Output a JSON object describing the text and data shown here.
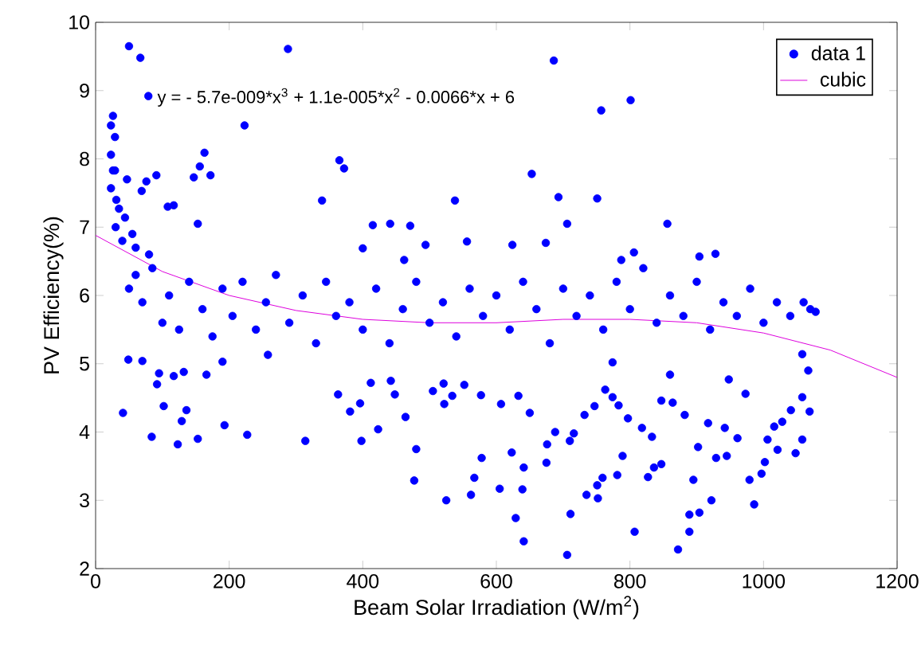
{
  "chart_data": {
    "type": "scatter",
    "xlabel": "Beam Solar Irradiation (W/m$^{2}$)",
    "ylabel": "PV Efficiency(%)",
    "annotations": [
      "y = - 5.7e-009*x$^{3}$ + 1.1e-005*x$^{2}$ - 0.0066*x + 6"
    ],
    "xlim": [
      0,
      1200
    ],
    "ylim": [
      2,
      10
    ],
    "xticks": [
      0,
      200,
      400,
      600,
      800,
      1000,
      1200
    ],
    "yticks": [
      2,
      3,
      4,
      5,
      6,
      7,
      8,
      9,
      10
    ],
    "legend": "top right",
    "grid": false,
    "series": [
      {
        "name": "data 1",
        "marker": "circle",
        "color": "#0000ff",
        "x": [
          50,
          67,
          288,
          686,
          79,
          26,
          23,
          29,
          223,
          757,
          801,
          23,
          163,
          365,
          372,
          147,
          156,
          172,
          91,
          76,
          47,
          69,
          653,
          693,
          751,
          538,
          339,
          706,
          856,
          441,
          415,
          471,
          108,
          117,
          153,
          624,
          928,
          904,
          556,
          494,
          400,
          806,
          787,
          462,
          674,
          26,
          23,
          31,
          35,
          44,
          29,
          41,
          84,
          102,
          136,
          129,
          123,
          153,
          193,
          227,
          314,
          166,
          190,
          258,
          49,
          92,
          117,
          132,
          95,
          70,
          363,
          381,
          396,
          398,
          423,
          412,
          442,
          448,
          464,
          480,
          477,
          525,
          505,
          521,
          552,
          534,
          522,
          577,
          578,
          567,
          562,
          607,
          633,
          605,
          623,
          629,
          639,
          641,
          641,
          706,
          650,
          675,
          676,
          688,
          710,
          716,
          711,
          735,
          751,
          759,
          752,
          732,
          747,
          763,
          774,
          774,
          783,
          781,
          789,
          807,
          797,
          818,
          827,
          833,
          836,
          847,
          847,
          860,
          864,
          872,
          882,
          889,
          889,
          895,
          902,
          904,
          917,
          922,
          929,
          942,
          945,
          948,
          961,
          973,
          979,
          986,
          997,
          1002,
          1006,
          1016,
          1021,
          1028,
          1041,
          1048,
          1058,
          1058,
          1067,
          1069,
          1058,
          1078,
          50,
          60,
          70,
          85,
          100,
          110,
          125,
          140,
          160,
          175,
          190,
          205,
          220,
          240,
          255,
          270,
          290,
          310,
          330,
          345,
          360,
          380,
          400,
          420,
          440,
          460,
          480,
          500,
          520,
          540,
          560,
          580,
          600,
          620,
          640,
          660,
          680,
          700,
          720,
          740,
          760,
          780,
          800,
          820,
          840,
          860,
          880,
          900,
          920,
          940,
          960,
          980,
          1000,
          1020,
          1040,
          1060,
          1070,
          30,
          40,
          55,
          60,
          80
        ],
        "values": [
          9.65,
          9.48,
          9.61,
          9.44,
          8.92,
          8.63,
          8.49,
          8.32,
          8.49,
          8.71,
          8.86,
          8.06,
          8.09,
          7.98,
          7.86,
          7.73,
          7.89,
          7.76,
          7.76,
          7.67,
          7.7,
          7.53,
          7.78,
          7.44,
          7.42,
          7.39,
          7.39,
          7.05,
          7.05,
          7.05,
          7.03,
          7.02,
          7.3,
          7.32,
          7.05,
          6.74,
          6.61,
          6.57,
          6.79,
          6.74,
          6.69,
          6.63,
          6.52,
          6.52,
          6.77,
          7.83,
          7.57,
          7.4,
          7.27,
          7.14,
          7.83,
          4.28,
          3.93,
          4.38,
          4.32,
          4.16,
          3.82,
          3.9,
          4.1,
          3.96,
          3.87,
          4.84,
          5.03,
          5.13,
          5.06,
          4.7,
          4.82,
          4.88,
          4.86,
          5.04,
          4.55,
          4.3,
          4.42,
          3.87,
          4.04,
          4.72,
          4.75,
          4.55,
          4.22,
          3.75,
          3.29,
          3.0,
          4.6,
          4.71,
          4.69,
          4.53,
          4.41,
          4.54,
          3.62,
          3.33,
          3.08,
          4.41,
          4.53,
          3.17,
          3.7,
          2.74,
          3.16,
          3.48,
          2.4,
          2.2,
          4.28,
          3.55,
          3.82,
          4.0,
          3.87,
          3.98,
          2.8,
          3.08,
          3.22,
          3.33,
          3.03,
          4.25,
          4.38,
          4.62,
          5.02,
          4.51,
          4.39,
          3.37,
          3.65,
          2.54,
          4.2,
          4.06,
          3.34,
          3.93,
          3.48,
          4.46,
          3.53,
          4.84,
          4.43,
          2.28,
          4.25,
          2.79,
          2.54,
          3.3,
          3.78,
          2.82,
          4.13,
          3.0,
          3.62,
          4.06,
          3.65,
          4.77,
          3.91,
          4.56,
          3.3,
          2.94,
          3.39,
          3.56,
          3.89,
          4.08,
          3.74,
          4.15,
          4.32,
          3.69,
          3.89,
          4.51,
          4.9,
          4.3,
          5.14,
          5.76,
          6.1,
          6.3,
          5.9,
          6.4,
          5.6,
          6.0,
          5.5,
          6.2,
          5.8,
          5.4,
          6.1,
          5.7,
          6.2,
          5.5,
          5.9,
          6.3,
          5.6,
          6.0,
          5.3,
          6.2,
          5.7,
          5.9,
          5.5,
          6.1,
          5.3,
          5.8,
          6.2,
          5.6,
          5.9,
          5.4,
          6.1,
          5.7,
          6.0,
          5.5,
          6.2,
          5.8,
          5.3,
          6.1,
          5.7,
          6.0,
          5.5,
          6.2,
          5.8,
          6.4,
          5.6,
          6.0,
          5.7,
          6.2,
          5.5,
          5.9,
          5.7,
          6.1,
          5.6,
          5.9,
          5.7,
          5.9,
          5.8,
          7.0,
          6.8,
          6.9,
          6.7,
          6.6
        ]
      },
      {
        "name": "cubic",
        "type": "line",
        "marker": "none",
        "color": "#dd00dd",
        "x": [
          0,
          100,
          200,
          300,
          400,
          500,
          600,
          700,
          800,
          900,
          1000,
          1100,
          1200
        ],
        "values": [
          6.88,
          6.35,
          6.0,
          5.78,
          5.65,
          5.6,
          5.6,
          5.65,
          5.65,
          5.6,
          5.45,
          5.2,
          4.8
        ]
      }
    ]
  }
}
